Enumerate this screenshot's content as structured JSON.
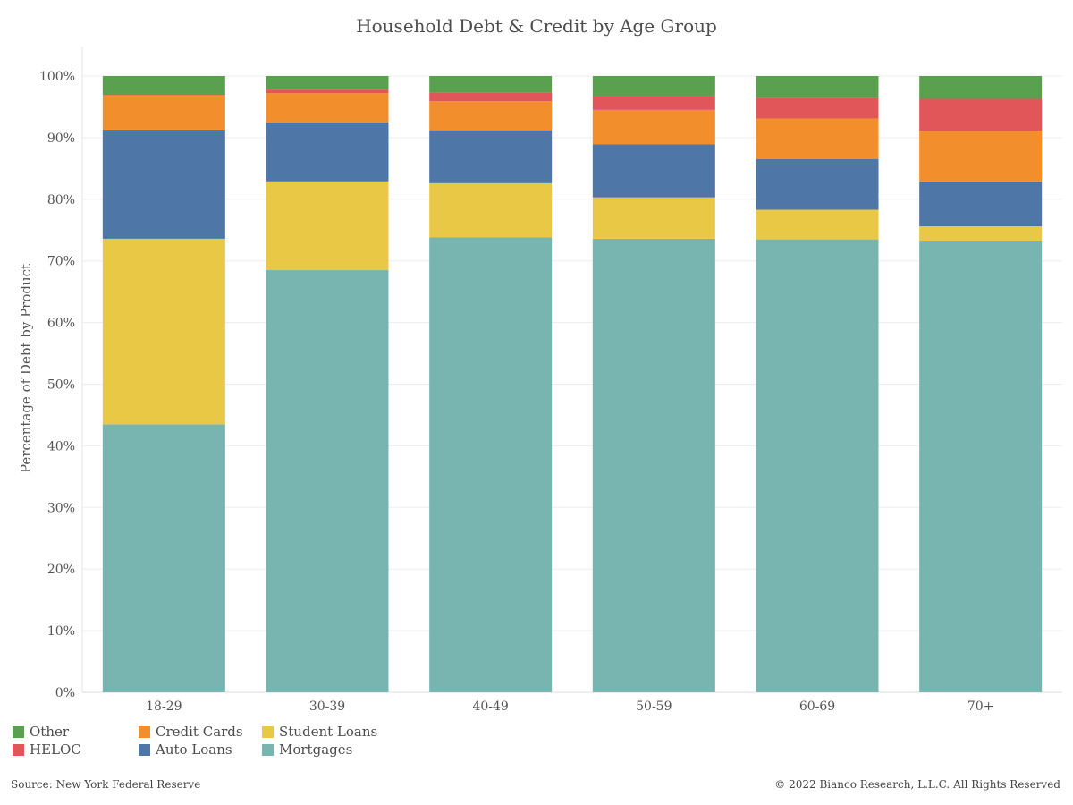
{
  "chart_data": {
    "type": "bar",
    "stacked": true,
    "title": "Household Debt & Credit by Age Group",
    "ylabel": "Percentage of Debt by Product",
    "xlabel": "",
    "ylim": [
      0,
      100
    ],
    "y_ticks": [
      "0%",
      "10%",
      "20%",
      "30%",
      "40%",
      "50%",
      "60%",
      "70%",
      "80%",
      "90%",
      "100%"
    ],
    "categories": [
      "18-29",
      "30-39",
      "40-49",
      "50-59",
      "60-69",
      "70+"
    ],
    "series": [
      {
        "name": "Mortgages",
        "color": "#78b5b0",
        "values": [
          43.5,
          68.5,
          73.8,
          73.6,
          73.5,
          73.3
        ]
      },
      {
        "name": "Student Loans",
        "color": "#e9c846",
        "values": [
          30.1,
          14.4,
          8.8,
          6.7,
          4.8,
          2.3
        ]
      },
      {
        "name": "Auto Loans",
        "color": "#4e77a7",
        "values": [
          17.7,
          9.6,
          8.6,
          8.6,
          8.2,
          7.3
        ]
      },
      {
        "name": "Credit Cards",
        "color": "#f28e2c",
        "values": [
          5.6,
          4.7,
          4.7,
          5.6,
          6.6,
          8.2
        ]
      },
      {
        "name": "HELOC",
        "color": "#e15759",
        "values": [
          0.2,
          0.6,
          1.4,
          2.3,
          3.4,
          5.2
        ]
      },
      {
        "name": "Other",
        "color": "#59a14f",
        "values": [
          2.9,
          2.2,
          2.7,
          3.2,
          3.5,
          3.7
        ]
      }
    ],
    "grid": true,
    "legend_position": "bottom-left",
    "legend_order": [
      "Other",
      "HELOC",
      "Credit Cards",
      "Auto Loans",
      "Student Loans",
      "Mortgages"
    ]
  },
  "footer": {
    "source": "Source: New York Federal Reserve",
    "copyright": "© 2022 Bianco Research, L.L.C. All Rights Reserved"
  }
}
